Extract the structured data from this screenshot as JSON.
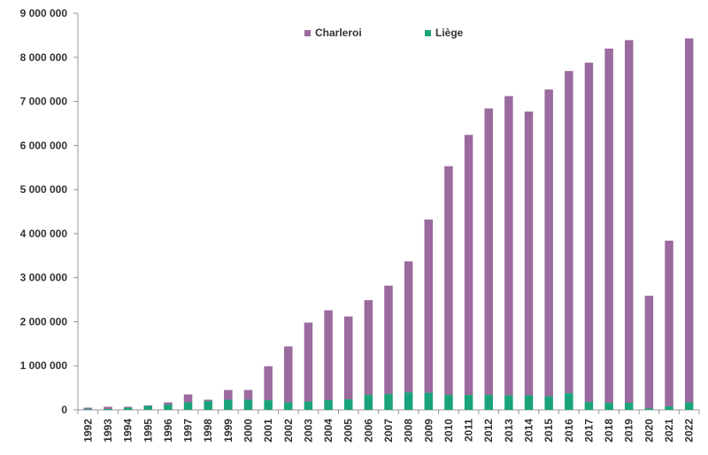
{
  "chart_data": {
    "type": "bar",
    "stacked": true,
    "title": "",
    "xlabel": "",
    "ylabel": "",
    "ylim": [
      0,
      9000000
    ],
    "yticks": [
      0,
      1000000,
      2000000,
      3000000,
      4000000,
      5000000,
      6000000,
      7000000,
      8000000,
      9000000
    ],
    "ytick_labels": [
      "0",
      "1 000 000",
      "2 000 000",
      "3 000 000",
      "4 000 000",
      "5 000 000",
      "6 000 000",
      "7 000 000",
      "8 000 000",
      "9 000 000"
    ],
    "grid": false,
    "legend_position": "top-center",
    "categories": [
      "1992",
      "1993",
      "1994",
      "1995",
      "1996",
      "1997",
      "1998",
      "1999",
      "2000",
      "2001",
      "2002",
      "2003",
      "2004",
      "2005",
      "2006",
      "2007",
      "2008",
      "2009",
      "2010",
      "2011",
      "2012",
      "2013",
      "2014",
      "2015",
      "2016",
      "2017",
      "2018",
      "2019",
      "2020",
      "2021",
      "2022"
    ],
    "series": [
      {
        "name": "Liège",
        "color": "#1aa37a",
        "values": [
          20000,
          20000,
          50000,
          90000,
          120000,
          170000,
          200000,
          230000,
          230000,
          220000,
          170000,
          190000,
          220000,
          240000,
          340000,
          360000,
          400000,
          390000,
          340000,
          340000,
          340000,
          330000,
          330000,
          310000,
          380000,
          180000,
          160000,
          160000,
          30000,
          80000,
          170000
        ]
      },
      {
        "name": "Charleroi",
        "color": "#9b6a9e",
        "values": [
          30000,
          50000,
          20000,
          10000,
          50000,
          180000,
          30000,
          220000,
          220000,
          770000,
          1270000,
          1790000,
          2040000,
          1880000,
          2150000,
          2460000,
          2970000,
          3930000,
          5190000,
          5900000,
          6500000,
          6790000,
          6440000,
          6960000,
          7310000,
          7700000,
          8040000,
          8230000,
          2560000,
          3760000,
          8260000
        ]
      }
    ],
    "legend": [
      {
        "name": "Charleroi",
        "color": "#9b6a9e"
      },
      {
        "name": "Liège",
        "color": "#1aa37a"
      }
    ]
  }
}
